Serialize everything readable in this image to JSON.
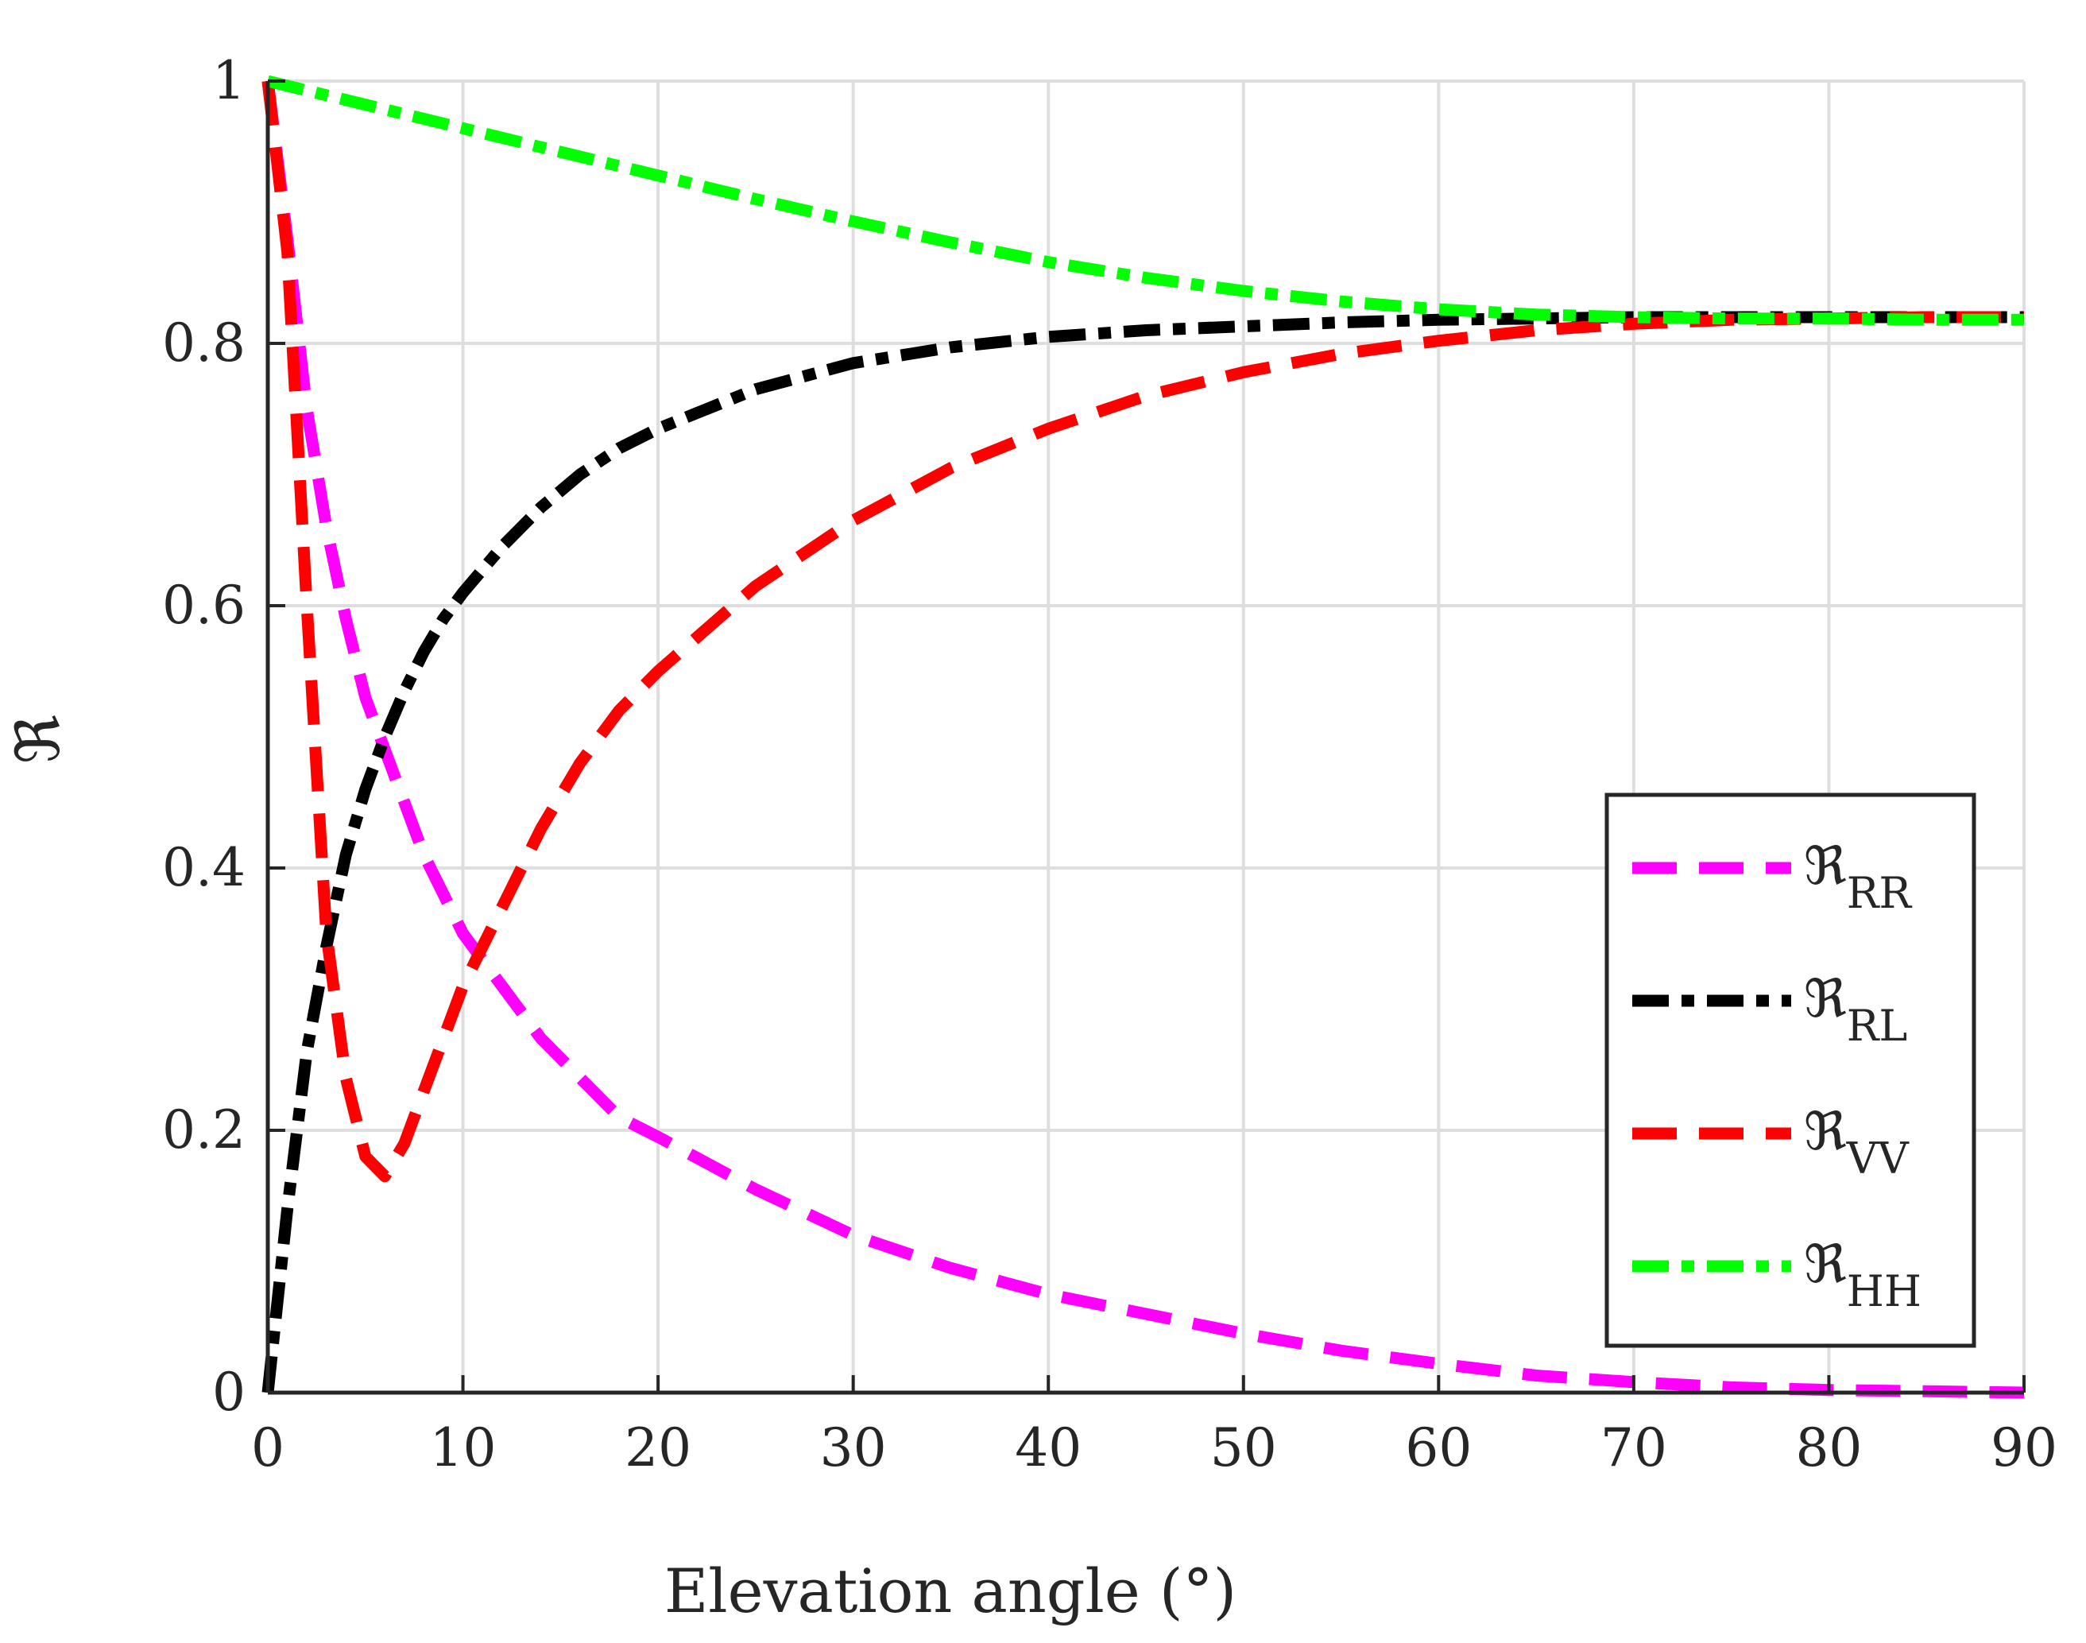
{
  "chart_data": {
    "type": "line",
    "title": "",
    "xlabel": "Elevation angle (°)",
    "ylabel": "ℜ",
    "xlim": [
      0,
      90
    ],
    "ylim": [
      0,
      1
    ],
    "xticks": [
      "0",
      "10",
      "20",
      "30",
      "40",
      "50",
      "60",
      "70",
      "80",
      "90"
    ],
    "yticks": [
      "0",
      "0.2",
      "0.4",
      "0.6",
      "0.8",
      "1"
    ],
    "grid": true,
    "legend_position": "right",
    "series": [
      {
        "name": "ℜ",
        "subscript": "RR",
        "color": "#ff00ff",
        "style": "dashed",
        "x": [
          0,
          1,
          2,
          3,
          4,
          5,
          6,
          7,
          8,
          9,
          10,
          11,
          12,
          14,
          16,
          18,
          20,
          25,
          30,
          35,
          40,
          45,
          50,
          55,
          60,
          65,
          70,
          75,
          80,
          85,
          90
        ],
        "y": [
          1.0,
          0.88,
          0.75,
          0.66,
          0.59,
          0.53,
          0.49,
          0.45,
          0.41,
          0.38,
          0.35,
          0.33,
          0.31,
          0.27,
          0.24,
          0.21,
          0.195,
          0.155,
          0.12,
          0.095,
          0.075,
          0.06,
          0.045,
          0.032,
          0.022,
          0.013,
          0.008,
          0.004,
          0.002,
          0.001,
          0.0
        ]
      },
      {
        "name": "ℜ",
        "subscript": "RL",
        "color": "#000000",
        "style": "dash-dot",
        "x": [
          0,
          1,
          2,
          3,
          4,
          5,
          6,
          7,
          8,
          9,
          10,
          12,
          14,
          16,
          18,
          20,
          25,
          30,
          35,
          40,
          45,
          50,
          55,
          60,
          65,
          70,
          75,
          80,
          85,
          90
        ],
        "y": [
          0.0,
          0.14,
          0.26,
          0.34,
          0.41,
          0.46,
          0.5,
          0.535,
          0.565,
          0.59,
          0.61,
          0.645,
          0.675,
          0.7,
          0.72,
          0.735,
          0.765,
          0.785,
          0.797,
          0.805,
          0.81,
          0.813,
          0.816,
          0.818,
          0.819,
          0.82,
          0.82,
          0.82,
          0.82,
          0.82
        ]
      },
      {
        "name": "ℜ",
        "subscript": "VV",
        "color": "#ff0000",
        "style": "dashed",
        "x": [
          0,
          1,
          2,
          3,
          4,
          5,
          6,
          7,
          8,
          9,
          10,
          11,
          12,
          14,
          16,
          18,
          20,
          25,
          30,
          35,
          40,
          45,
          50,
          55,
          60,
          65,
          70,
          75,
          80,
          85,
          90
        ],
        "y": [
          1.0,
          0.87,
          0.6,
          0.35,
          0.24,
          0.18,
          0.165,
          0.19,
          0.23,
          0.27,
          0.31,
          0.34,
          0.37,
          0.43,
          0.48,
          0.52,
          0.55,
          0.615,
          0.665,
          0.705,
          0.735,
          0.76,
          0.778,
          0.792,
          0.802,
          0.81,
          0.815,
          0.818,
          0.819,
          0.82,
          0.82
        ]
      },
      {
        "name": "ℜ",
        "subscript": "HH",
        "color": "#00ff00",
        "style": "dash-dot",
        "x": [
          0,
          5,
          10,
          15,
          20,
          25,
          30,
          35,
          40,
          45,
          50,
          55,
          60,
          65,
          70,
          75,
          80,
          85,
          90
        ],
        "y": [
          1.0,
          0.982,
          0.964,
          0.946,
          0.928,
          0.91,
          0.893,
          0.877,
          0.862,
          0.85,
          0.84,
          0.832,
          0.826,
          0.822,
          0.82,
          0.819,
          0.819,
          0.818,
          0.818
        ]
      }
    ]
  }
}
